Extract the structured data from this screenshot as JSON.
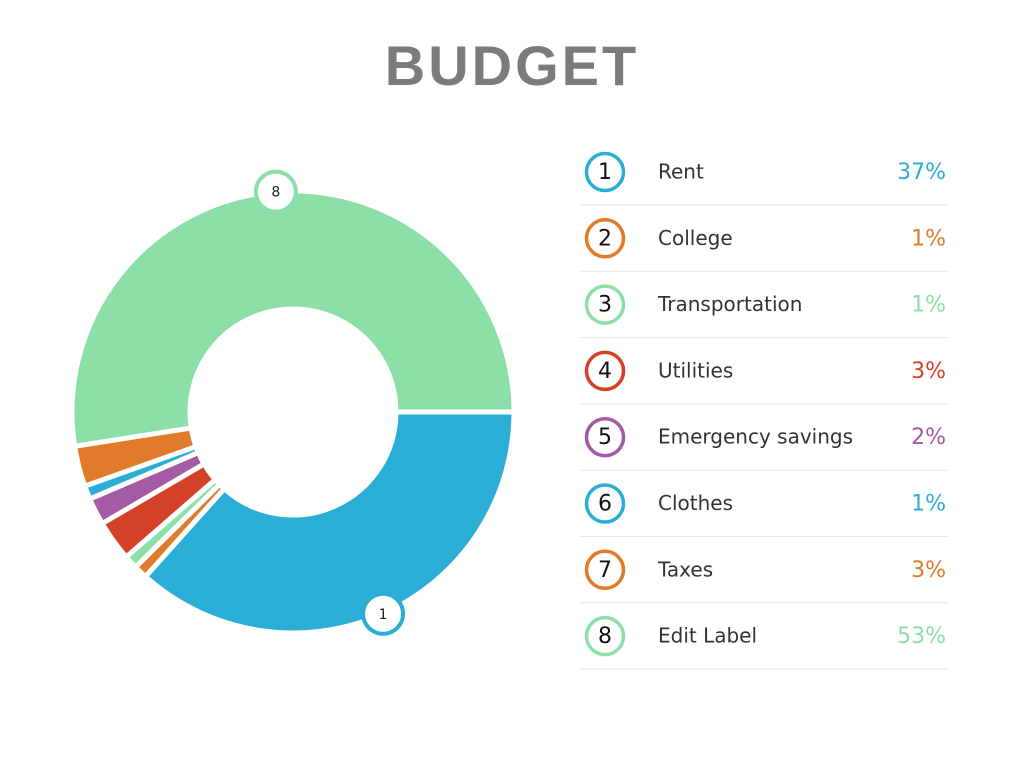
{
  "chart_data": {
    "type": "pie",
    "title": "BUDGET",
    "categories": [
      "Rent",
      "College",
      "Transportation",
      "Utilities",
      "Emergency savings",
      "Clothes",
      "Taxes",
      "Edit Label"
    ],
    "values": [
      37,
      1,
      1,
      3,
      2,
      1,
      3,
      53
    ],
    "value_labels": [
      "37%",
      "1%",
      "1%",
      "3%",
      "2%",
      "1%",
      "3%",
      "53%"
    ],
    "markers": [
      1,
      2,
      3,
      4,
      5,
      6,
      7,
      8
    ],
    "colors": [
      "#2aaed6",
      "#e07b2a",
      "#8ddfa8",
      "#d44127",
      "#a45aa5",
      "#2aaed6",
      "#e07b2a",
      "#8ddfa8"
    ],
    "donut": true,
    "badges": [
      0,
      7
    ]
  }
}
